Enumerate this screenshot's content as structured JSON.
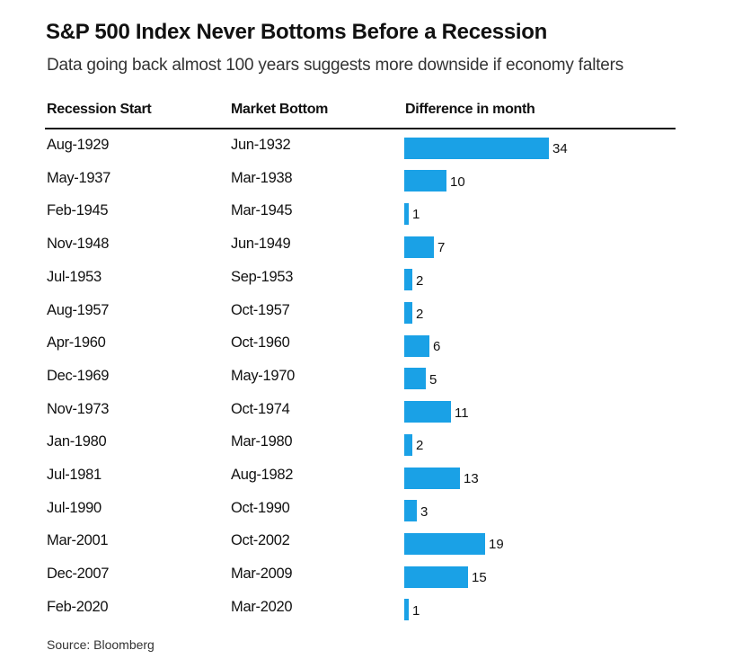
{
  "chart_data": {
    "type": "table",
    "title": "S&P 500 Index Never Bottoms Before a Recession",
    "subtitle": "Data going back almost 100 years suggests more downside if economy falters",
    "columns": [
      "Recession Start",
      "Market Bottom",
      "Difference in month"
    ],
    "rows": [
      {
        "recession_start": "Aug-1929",
        "market_bottom": "Jun-1932",
        "difference": 34
      },
      {
        "recession_start": "May-1937",
        "market_bottom": "Mar-1938",
        "difference": 10
      },
      {
        "recession_start": "Feb-1945",
        "market_bottom": "Mar-1945",
        "difference": 1
      },
      {
        "recession_start": "Nov-1948",
        "market_bottom": "Jun-1949",
        "difference": 7
      },
      {
        "recession_start": "Jul-1953",
        "market_bottom": "Sep-1953",
        "difference": 2
      },
      {
        "recession_start": "Aug-1957",
        "market_bottom": "Oct-1957",
        "difference": 2
      },
      {
        "recession_start": "Apr-1960",
        "market_bottom": "Oct-1960",
        "difference": 6
      },
      {
        "recession_start": "Dec-1969",
        "market_bottom": "May-1970",
        "difference": 5
      },
      {
        "recession_start": "Nov-1973",
        "market_bottom": "Oct-1974",
        "difference": 11
      },
      {
        "recession_start": "Jan-1980",
        "market_bottom": "Mar-1980",
        "difference": 2
      },
      {
        "recession_start": "Jul-1981",
        "market_bottom": "Aug-1982",
        "difference": 13
      },
      {
        "recession_start": "Jul-1990",
        "market_bottom": "Oct-1990",
        "difference": 3
      },
      {
        "recession_start": "Mar-2001",
        "market_bottom": "Oct-2002",
        "difference": 19
      },
      {
        "recession_start": "Dec-2007",
        "market_bottom": "Mar-2009",
        "difference": 15
      },
      {
        "recession_start": "Feb-2020",
        "market_bottom": "Mar-2020",
        "difference": 1
      }
    ],
    "bar_color": "#1aa1e6",
    "source": "Source: Bloomberg"
  }
}
